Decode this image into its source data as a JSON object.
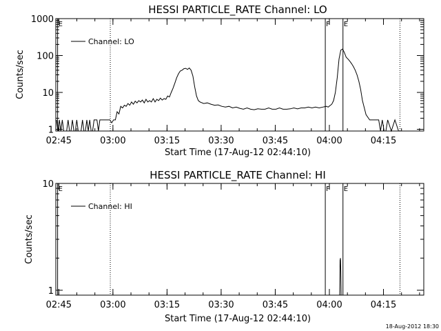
{
  "footer": {
    "timestamp": "18-Aug-2012 18:30"
  },
  "chart_data": [
    {
      "type": "line",
      "title": "HESSI PARTICLE_RATE Channel: LO",
      "xlabel": "Start Time (17-Aug-12 02:44:10)",
      "ylabel": "Counts/sec",
      "yscale": "log",
      "ylim": [
        0.9,
        1000
      ],
      "xlim": [
        0,
        102
      ],
      "x_unit": "minutes since 02:44:10",
      "xtick_values": [
        0.83,
        15.83,
        30.83,
        45.83,
        60.83,
        75.83,
        90.83
      ],
      "xtick_labels": [
        "02:45",
        "03:00",
        "03:15",
        "03:30",
        "03:45",
        "04:00",
        "04:15"
      ],
      "ytick_values": [
        1,
        10,
        100,
        1000
      ],
      "ytick_labels": [
        "1",
        "10",
        "100",
        "1000"
      ],
      "legend": {
        "position": "top-left",
        "entries": [
          "Channel: LO"
        ]
      },
      "markers": [
        {
          "x": 0.5,
          "label": "E",
          "style": "solid"
        },
        {
          "x": 15.1,
          "label": "",
          "style": "dotted"
        },
        {
          "x": 74.7,
          "label": "F",
          "style": "solid"
        },
        {
          "x": 79.6,
          "label": "E",
          "style": "solid"
        },
        {
          "x": 95.4,
          "label": "",
          "style": "dotted"
        }
      ],
      "series": [
        {
          "name": "Channel: LO",
          "x": [
            0.2,
            0.6,
            1.0,
            1.4,
            1.8,
            2.2,
            2.6,
            3.0,
            3.4,
            3.8,
            4.2,
            4.6,
            5.0,
            5.4,
            5.8,
            6.2,
            6.6,
            7.0,
            7.4,
            7.8,
            8.2,
            8.6,
            9.0,
            9.4,
            9.8,
            10.2,
            10.6,
            11.0,
            11.4,
            11.8,
            12.2,
            12.6,
            13.0,
            13.4,
            13.8,
            14.2,
            14.6,
            15.0,
            15.5,
            16.0,
            16.5,
            17.0,
            17.5,
            18.0,
            18.5,
            19.0,
            19.5,
            20.0,
            20.5,
            21.0,
            21.5,
            22.0,
            22.5,
            23.0,
            23.5,
            24.0,
            24.5,
            25.0,
            25.5,
            26.0,
            26.5,
            27.0,
            27.5,
            28.0,
            28.5,
            29.0,
            29.5,
            30.0,
            30.5,
            31.0,
            31.5,
            32.0,
            32.5,
            33.0,
            33.5,
            34.0,
            34.5,
            35.0,
            35.5,
            36.0,
            36.5,
            37.0,
            37.5,
            38.0,
            38.5,
            39.0,
            39.5,
            40.0,
            41.0,
            42.0,
            43.0,
            44.0,
            45.0,
            46.0,
            47.0,
            48.0,
            49.0,
            50.0,
            51.0,
            52.0,
            53.0,
            54.0,
            55.0,
            56.0,
            57.0,
            58.0,
            59.0,
            60.0,
            61.0,
            62.0,
            63.0,
            64.0,
            65.0,
            66.0,
            67.0,
            68.0,
            69.0,
            70.0,
            71.0,
            72.0,
            73.0,
            74.0,
            75.0,
            75.5,
            76.0,
            76.5,
            77.0,
            77.5,
            78.0,
            78.5,
            79.0,
            79.5,
            80.0,
            80.5,
            81.0,
            81.5,
            82.0,
            82.5,
            83.0,
            83.5,
            84.0,
            84.5,
            85.0,
            86.0,
            87.0,
            88.0,
            89.0,
            89.5,
            90.0,
            90.5,
            91.0,
            91.5,
            92.0,
            93.0,
            94.0,
            95.0,
            95.5
          ],
          "values": [
            1.8,
            0.9,
            1.8,
            0.9,
            1.8,
            0.9,
            0.9,
            0.9,
            1.8,
            0.9,
            0.9,
            1.8,
            0.9,
            0.9,
            1.8,
            0.9,
            0.9,
            0.9,
            1.8,
            0.9,
            0.9,
            1.8,
            0.9,
            1.8,
            0.9,
            0.9,
            1.8,
            1.8,
            1.8,
            0.9,
            1.8,
            1.8,
            1.8,
            1.8,
            1.8,
            1.8,
            1.8,
            1.8,
            1.5,
            1.8,
            1.8,
            3.0,
            2.6,
            4.2,
            3.8,
            4.5,
            4.2,
            5.0,
            4.5,
            5.5,
            4.8,
            5.8,
            5.2,
            6.0,
            5.5,
            6.2,
            5.2,
            6.5,
            5.5,
            6.0,
            5.5,
            6.8,
            5.5,
            6.5,
            6.0,
            7.0,
            6.2,
            6.8,
            6.5,
            8.0,
            7.5,
            10.0,
            13.0,
            18.0,
            25.0,
            32.0,
            38.0,
            40.0,
            44.0,
            45.0,
            42.0,
            46.0,
            40.0,
            28.0,
            14.0,
            8.0,
            6.0,
            5.5,
            5.0,
            5.2,
            4.8,
            4.5,
            4.6,
            4.2,
            4.0,
            4.2,
            3.8,
            4.0,
            3.7,
            3.5,
            3.8,
            3.5,
            3.4,
            3.6,
            3.5,
            3.5,
            3.8,
            3.5,
            3.5,
            3.8,
            3.5,
            3.5,
            3.6,
            3.8,
            3.6,
            3.8,
            3.8,
            4.0,
            3.8,
            4.0,
            3.8,
            4.0,
            4.2,
            4.0,
            4.4,
            4.8,
            6.0,
            10.0,
            25.0,
            80.0,
            140.0,
            150.0,
            120.0,
            90.0,
            80.0,
            70.0,
            60.0,
            50.0,
            40.0,
            30.0,
            20.0,
            12.0,
            6.0,
            2.5,
            1.8,
            1.8,
            1.8,
            1.8,
            0.9,
            1.8,
            0.9,
            0.9,
            1.8,
            0.9,
            1.8,
            0.9,
            0.9
          ]
        }
      ]
    },
    {
      "type": "line",
      "title": "HESSI PARTICLE_RATE Channel: HI",
      "xlabel": "Start Time (17-Aug-12 02:44:10)",
      "ylabel": "Counts/sec",
      "yscale": "log",
      "ylim": [
        0.9,
        10
      ],
      "xlim": [
        0,
        102
      ],
      "x_unit": "minutes since 02:44:10",
      "xtick_values": [
        0.83,
        15.83,
        30.83,
        45.83,
        60.83,
        75.83,
        90.83
      ],
      "xtick_labels": [
        "02:45",
        "03:00",
        "03:15",
        "03:30",
        "03:45",
        "04:00",
        "04:15"
      ],
      "ytick_values": [
        1,
        10
      ],
      "ytick_labels": [
        "1",
        "10"
      ],
      "legend": {
        "position": "top-left",
        "entries": [
          "Channel: HI"
        ]
      },
      "markers": [
        {
          "x": 0.5,
          "label": "E",
          "style": "solid"
        },
        {
          "x": 15.1,
          "label": "",
          "style": "dotted"
        },
        {
          "x": 74.7,
          "label": "F",
          "style": "solid"
        },
        {
          "x": 79.6,
          "label": "E",
          "style": "solid"
        },
        {
          "x": 95.4,
          "label": "",
          "style": "dotted"
        }
      ],
      "series": [
        {
          "name": "Channel: HI",
          "x": [
            78.7,
            78.8,
            78.9,
            79.0,
            79.1
          ],
          "values": [
            0.9,
            1.9,
            2.0,
            1.5,
            0.9
          ]
        }
      ]
    }
  ]
}
